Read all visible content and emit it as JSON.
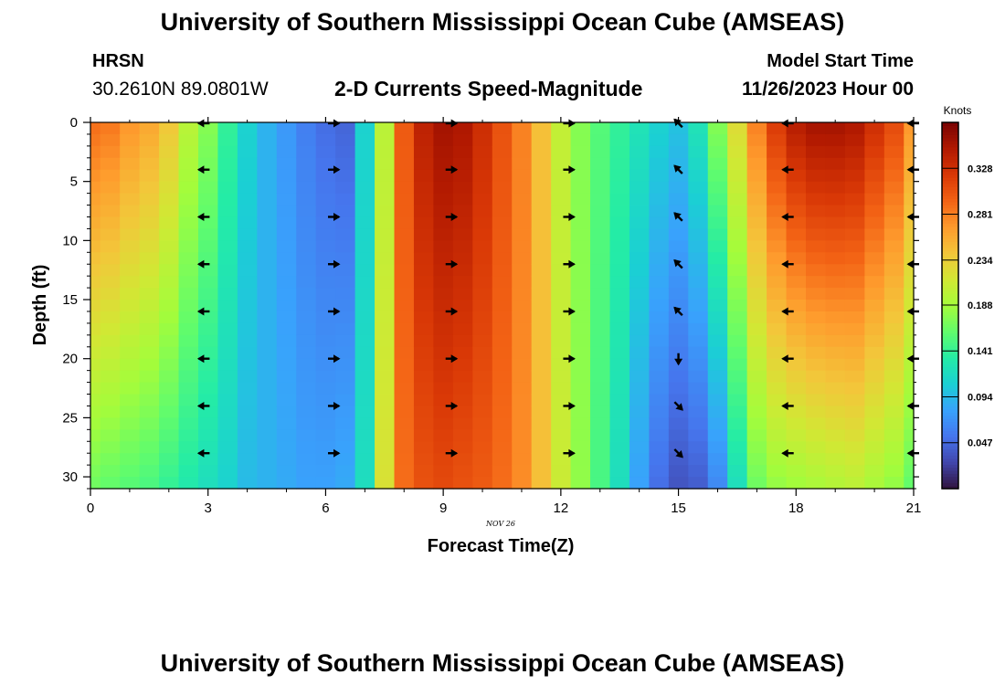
{
  "header": {
    "title": "University of Southern Mississippi Ocean Cube (AMSEAS)",
    "station": "HRSN",
    "coords": "30.2610N  89.0801W",
    "chart_title": "2-D Currents Speed-Magnitude",
    "model_start_label": "Model Start Time",
    "model_start_value": "11/26/2023 Hour 00"
  },
  "footer": {
    "title": "University of Southern Mississippi Ocean Cube (AMSEAS)"
  },
  "colors": {
    "background": "#ffffff",
    "arrow": "#000000",
    "colormap": [
      "#30123b",
      "#4145ab",
      "#4675ed",
      "#39a2fc",
      "#1bcfd4",
      "#24eca6",
      "#61fc6c",
      "#a4fc3b",
      "#d1e834",
      "#f3c63a",
      "#fe9b2d",
      "#f36315",
      "#d93806",
      "#b11901",
      "#7a0403"
    ]
  },
  "chart_data": {
    "type": "heatmap",
    "title": "2-D Currents Speed-Magnitude",
    "xlabel": "Forecast Time(Z)",
    "ylabel": "Depth (ft)",
    "x_sublabel": "NOV 26",
    "xlim": [
      0,
      21
    ],
    "ylim": [
      31,
      0
    ],
    "x_ticks": [
      0,
      3,
      6,
      9,
      12,
      15,
      18,
      21
    ],
    "y_ticks": [
      0,
      5,
      10,
      15,
      20,
      25,
      30
    ],
    "colorbar": {
      "label": "Knots",
      "range": [
        0,
        0.375
      ],
      "ticks": [
        "0.328",
        "0.281",
        "0.234",
        "0.188",
        "0.141",
        "0.094",
        "0.047"
      ],
      "tick_values": [
        0.328,
        0.281,
        0.234,
        0.188,
        0.141,
        0.094,
        0.047
      ]
    },
    "time_columns": [
      0,
      0.5,
      1,
      1.5,
      2,
      2.5,
      3,
      3.5,
      4,
      4.5,
      5,
      5.5,
      6,
      6.5,
      7,
      7.5,
      8,
      8.5,
      9,
      9.5,
      10,
      10.5,
      11,
      11.5,
      12,
      12.5,
      13,
      13.5,
      14,
      14.5,
      15,
      15.5,
      16,
      16.5,
      17,
      17.5,
      18,
      18.5,
      19,
      19.5,
      20,
      20.5,
      21
    ],
    "surface_speed": [
      0.29,
      0.285,
      0.27,
      0.26,
      0.24,
      0.2,
      0.175,
      0.14,
      0.11,
      0.09,
      0.075,
      0.06,
      0.05,
      0.045,
      0.11,
      0.2,
      0.3,
      0.34,
      0.355,
      0.35,
      0.33,
      0.305,
      0.28,
      0.245,
      0.205,
      0.175,
      0.155,
      0.14,
      0.125,
      0.11,
      0.1,
      0.125,
      0.175,
      0.225,
      0.28,
      0.32,
      0.345,
      0.355,
      0.355,
      0.35,
      0.33,
      0.31,
      0.27
    ],
    "bottom_speed": [
      0.165,
      0.16,
      0.155,
      0.15,
      0.14,
      0.13,
      0.12,
      0.11,
      0.095,
      0.09,
      0.085,
      0.08,
      0.08,
      0.085,
      0.12,
      0.22,
      0.29,
      0.305,
      0.31,
      0.305,
      0.3,
      0.29,
      0.275,
      0.245,
      0.21,
      0.18,
      0.15,
      0.12,
      0.08,
      0.05,
      0.035,
      0.04,
      0.065,
      0.12,
      0.165,
      0.18,
      0.185,
      0.19,
      0.195,
      0.2,
      0.19,
      0.18,
      0.16
    ],
    "vector_times": [
      2.9,
      6.2,
      9.2,
      12.2,
      15.0,
      17.8,
      21.0
    ],
    "vector_depths": [
      0,
      4,
      8,
      12,
      16,
      20,
      24,
      28
    ],
    "vector_directions": [
      [
        "W",
        "W",
        "W",
        "W",
        "W",
        "W",
        "W",
        "W"
      ],
      [
        "E",
        "E",
        "E",
        "E",
        "E",
        "E",
        "E",
        "E"
      ],
      [
        "E",
        "E",
        "E",
        "E",
        "E",
        "E",
        "E",
        "E"
      ],
      [
        "E",
        "E",
        "E",
        "E",
        "E",
        "E",
        "E",
        "E"
      ],
      [
        "NW",
        "NW",
        "NW",
        "NW",
        "NW",
        "S",
        "SE",
        "SE"
      ],
      [
        "W",
        "W",
        "W",
        "W",
        "W",
        "W",
        "W",
        "W"
      ],
      [
        "W",
        "W",
        "W",
        "W",
        "W",
        "W",
        "W",
        "W"
      ]
    ]
  }
}
